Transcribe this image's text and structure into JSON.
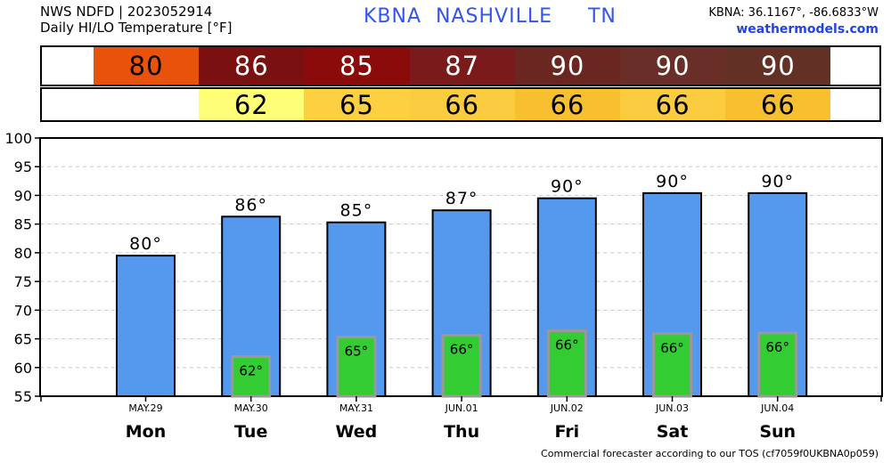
{
  "header": {
    "line1": "NWS NDFD | 2023052914",
    "line2": "Daily HI/LO Temperature [°F]",
    "station": "KBNA  NASHVILLE     TN",
    "coords": "KBNA: 36.1167°, -86.6833°W",
    "site": "weathermodels.com"
  },
  "strips": {
    "hi": {
      "cells": [
        {
          "value": "",
          "color": "#ffffff",
          "text_color": "#000000"
        },
        {
          "value": "80",
          "color": "#e8520a",
          "text_color": "#000000"
        },
        {
          "value": "86",
          "color": "#7a1010",
          "text_color": "#ffffff"
        },
        {
          "value": "85",
          "color": "#8b0a0a",
          "text_color": "#ffffff"
        },
        {
          "value": "87",
          "color": "#7a1a1a",
          "text_color": "#ffffff"
        },
        {
          "value": "90",
          "color": "#6a2620",
          "text_color": "#ffffff"
        },
        {
          "value": "90",
          "color": "#6a2e28",
          "text_color": "#ffffff"
        },
        {
          "value": "90",
          "color": "#633026",
          "text_color": "#ffffff"
        },
        {
          "value": "",
          "color": "#ffffff",
          "text_color": "#000000"
        }
      ]
    },
    "lo": {
      "cells": [
        {
          "value": "",
          "color": "#ffffff",
          "text_color": "#000000"
        },
        {
          "value": "",
          "color": "#ffffff",
          "text_color": "#000000"
        },
        {
          "value": "62",
          "color": "#ffff77",
          "text_color": "#000000"
        },
        {
          "value": "65",
          "color": "#fcd040",
          "text_color": "#000000"
        },
        {
          "value": "66",
          "color": "#fbcc40",
          "text_color": "#000000"
        },
        {
          "value": "66",
          "color": "#f8c030",
          "text_color": "#000000"
        },
        {
          "value": "66",
          "color": "#fbcc40",
          "text_color": "#000000"
        },
        {
          "value": "66",
          "color": "#f8c030",
          "text_color": "#000000"
        },
        {
          "value": "",
          "color": "#ffffff",
          "text_color": "#000000"
        }
      ]
    }
  },
  "chart_data": {
    "type": "bar",
    "categories": [
      "Mon",
      "Tue",
      "Wed",
      "Thu",
      "Fri",
      "Sat",
      "Sun"
    ],
    "dates": [
      "MAY.29",
      "MAY.30",
      "MAY.31",
      "JUN.01",
      "JUN.02",
      "JUN.03",
      "JUN.04"
    ],
    "series": [
      {
        "values": [
          79.5,
          86.3,
          85.3,
          87.4,
          89.5,
          90.4,
          90.4
        ],
        "labels": [
          "80°",
          "86°",
          "85°",
          "87°",
          "90°",
          "90°",
          "90°"
        ],
        "color": "#5599ee"
      },
      {
        "values": [
          null,
          61.9,
          65.3,
          65.6,
          66.4,
          65.9,
          66.0
        ],
        "labels": [
          "",
          "62°",
          "65°",
          "66°",
          "66°",
          "66°",
          "66°"
        ],
        "color": "#33cc33"
      }
    ],
    "yticks": [
      55,
      60,
      65,
      70,
      75,
      80,
      85,
      90,
      95,
      100
    ],
    "ylim": [
      55,
      100
    ],
    "grid": true
  },
  "footer": "Commercial forecaster according to our TOS (cf7059f0UKBNA0p059)"
}
